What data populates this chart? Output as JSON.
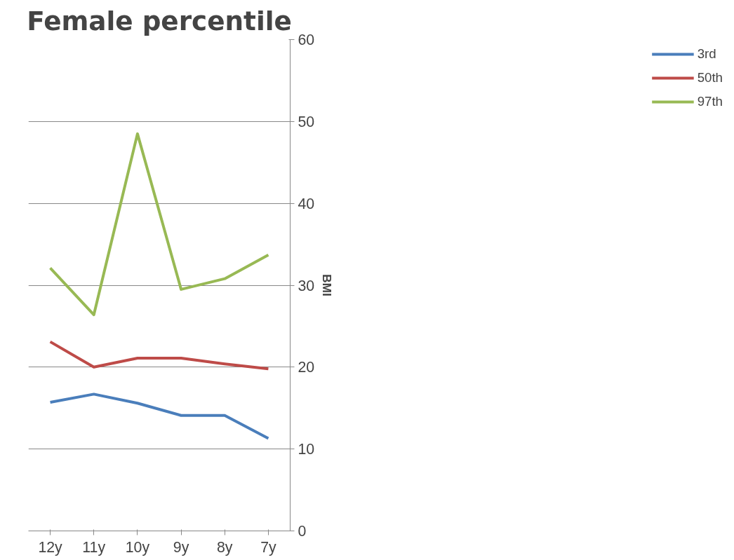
{
  "chart_data": {
    "type": "line",
    "title": "Female percentile",
    "ylabel": "BMI",
    "categories": [
      "12y",
      "11y",
      "10y",
      "9y",
      "8y",
      "7y"
    ],
    "series": [
      {
        "name": "3rd",
        "color": "#4a7ebb",
        "values": [
          15.7,
          16.7,
          15.6,
          14.1,
          14.1,
          11.3
        ]
      },
      {
        "name": "50th",
        "color": "#be4b48",
        "values": [
          23.1,
          20.0,
          21.1,
          21.1,
          20.4,
          19.8
        ]
      },
      {
        "name": "97th",
        "color": "#98b954",
        "values": [
          32.1,
          26.4,
          48.5,
          29.5,
          30.8,
          33.7
        ]
      }
    ],
    "ylim": [
      0,
      60
    ],
    "yticks": [
      0,
      10,
      20,
      30,
      40,
      50,
      60
    ],
    "grid": "y",
    "legend": "right",
    "marker": "none",
    "line_style": "solid"
  }
}
